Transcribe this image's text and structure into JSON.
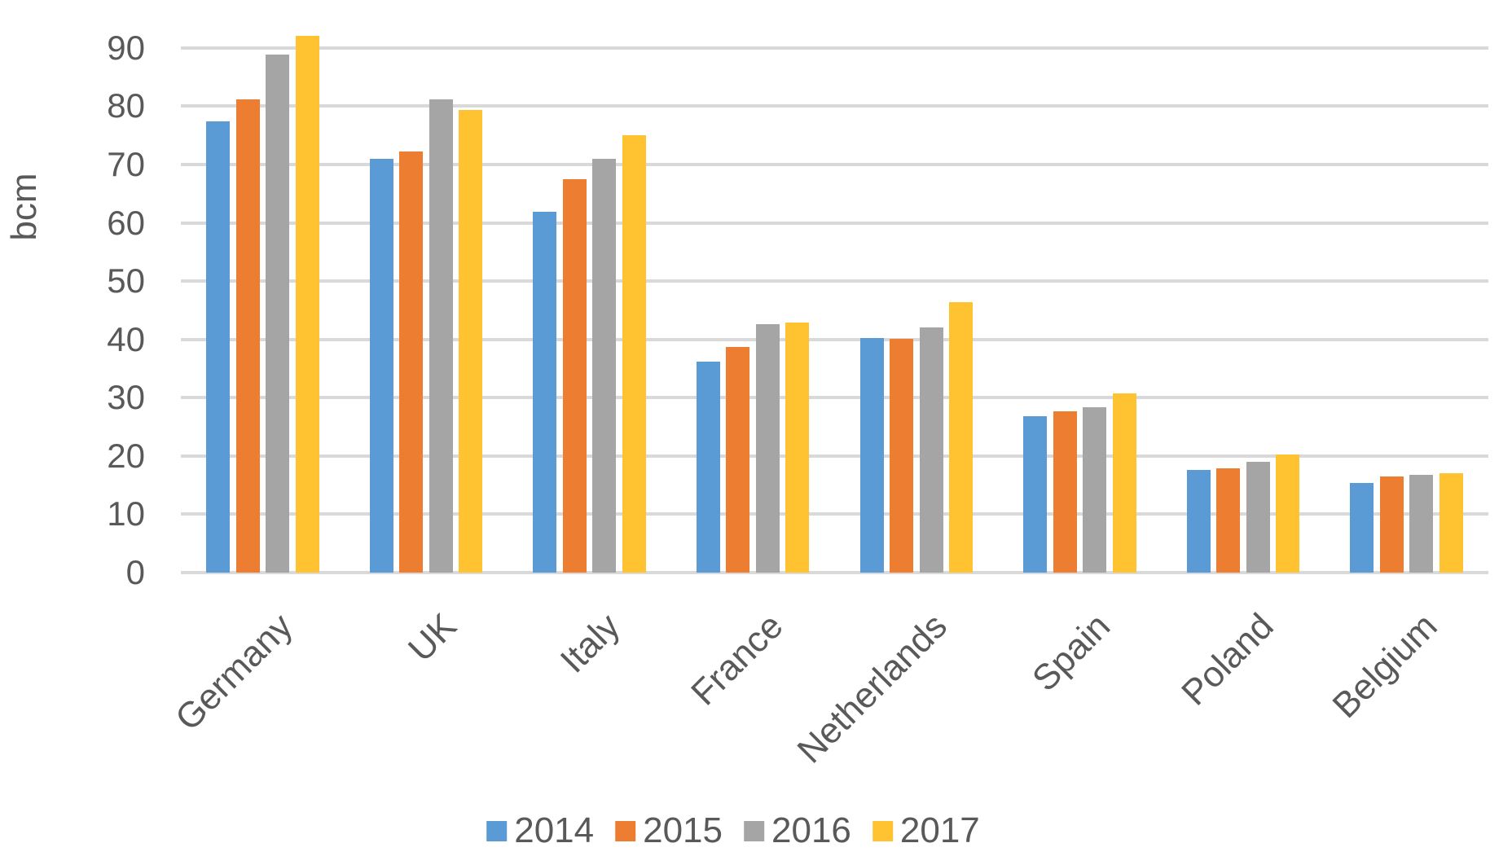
{
  "chart_data": {
    "type": "bar",
    "title": "",
    "ylabel": "bcm",
    "xlabel": "",
    "categories": [
      "Germany",
      "UK",
      "Italy",
      "France",
      "Netherlands",
      "Spain",
      "Poland",
      "Belgium"
    ],
    "series": [
      {
        "name": "2014",
        "color": "#5B9BD5",
        "values": [
          77.4,
          70.9,
          61.9,
          36.2,
          40.2,
          26.8,
          17.6,
          15.4
        ]
      },
      {
        "name": "2015",
        "color": "#ED7D31",
        "values": [
          81.1,
          72.2,
          67.5,
          38.7,
          40.1,
          27.7,
          17.9,
          16.5
        ]
      },
      {
        "name": "2016",
        "color": "#A5A5A5",
        "values": [
          88.9,
          81.1,
          70.9,
          42.6,
          42.0,
          28.3,
          19.0,
          16.8
        ]
      },
      {
        "name": "2017",
        "color": "#FFC230",
        "values": [
          92.1,
          79.4,
          75.0,
          42.9,
          46.4,
          30.8,
          20.2,
          17.1
        ]
      }
    ],
    "y_ticks": [
      0,
      10,
      20,
      30,
      40,
      50,
      60,
      70,
      80,
      90
    ],
    "ylim": [
      0,
      95
    ],
    "grid": true,
    "legend_position": "bottom",
    "category_label_rotation_deg": 45,
    "axis_text_color": "#595959",
    "gridline_color": "#D9D9D9",
    "background": "#FFFFFF"
  }
}
